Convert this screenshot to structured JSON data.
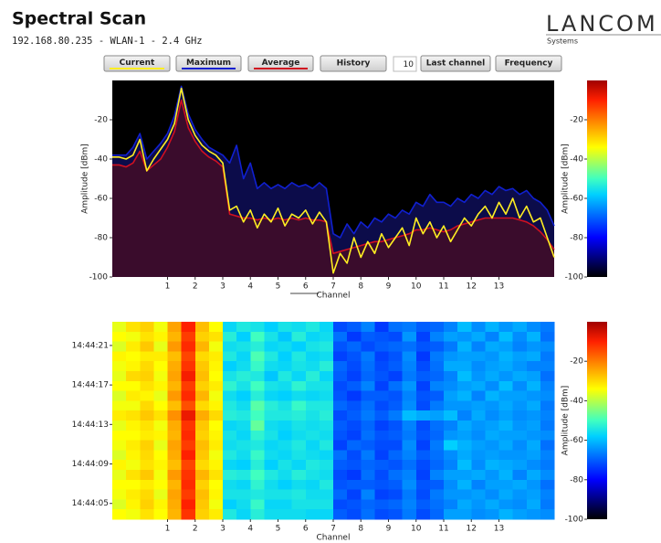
{
  "header": {
    "title": "Spectral Scan",
    "subtitle": "192.168.80.235 - WLAN-1 - 2.4 GHz",
    "logo": "LANCOM",
    "logo_sub": "Systems"
  },
  "controls": {
    "history": "History",
    "count": 10,
    "last_channel": "Last channel",
    "frequency": "Frequency"
  },
  "colormap": [
    {
      "value": -100,
      "color": "#000000"
    },
    {
      "value": -90,
      "color": "#000080"
    },
    {
      "value": -80,
      "color": "#0000ff"
    },
    {
      "value": -68,
      "color": "#0070ff"
    },
    {
      "value": -58,
      "color": "#00d0ff"
    },
    {
      "value": -50,
      "color": "#40ffc0"
    },
    {
      "value": -42,
      "color": "#a0ff60"
    },
    {
      "value": -34,
      "color": "#ffff00"
    },
    {
      "value": -22,
      "color": "#ff9000"
    },
    {
      "value": -10,
      "color": "#ff2000"
    },
    {
      "value": 0,
      "color": "#a00000"
    }
  ],
  "chart_data": [
    {
      "type": "line",
      "xlabel": "Channel",
      "ylabel": "Amplitude [dBm]",
      "x": [
        -1,
        -0.75,
        -0.5,
        -0.25,
        0,
        0.25,
        0.5,
        0.75,
        1,
        1.25,
        1.5,
        1.75,
        2,
        2.25,
        2.5,
        2.75,
        3,
        3.25,
        3.5,
        3.75,
        4,
        4.25,
        4.5,
        4.75,
        5,
        5.25,
        5.5,
        5.75,
        6,
        6.25,
        6.5,
        6.75,
        7,
        7.25,
        7.5,
        7.75,
        8,
        8.25,
        8.5,
        8.75,
        9,
        9.25,
        9.5,
        9.75,
        10,
        10.25,
        10.5,
        10.75,
        11,
        11.25,
        11.5,
        11.75,
        12,
        12.25,
        12.5,
        12.75,
        13,
        13.25,
        13.5,
        13.75,
        14,
        14.25,
        14.5,
        14.75,
        15
      ],
      "series": [
        {
          "name": "Current",
          "color": "#ffee22",
          "values": [
            -39,
            -39,
            -40,
            -38,
            -30,
            -46,
            -40,
            -35,
            -30,
            -22,
            -4,
            -20,
            -28,
            -33,
            -36,
            -38,
            -42,
            -66,
            -64,
            -72,
            -66,
            -75,
            -68,
            -72,
            -65,
            -74,
            -68,
            -70,
            -66,
            -73,
            -67,
            -72,
            -98,
            -88,
            -93,
            -80,
            -90,
            -82,
            -88,
            -78,
            -85,
            -80,
            -75,
            -84,
            -70,
            -78,
            -72,
            -80,
            -74,
            -82,
            -76,
            -70,
            -74,
            -68,
            -64,
            -70,
            -62,
            -68,
            -60,
            -70,
            -64,
            -72,
            -70,
            -80,
            -90
          ]
        },
        {
          "name": "Maximum",
          "color": "#1020d0",
          "fill": "#0c0c4a",
          "values": [
            -38,
            -38,
            -38,
            -34,
            -27,
            -40,
            -36,
            -32,
            -27,
            -18,
            -3,
            -17,
            -25,
            -30,
            -34,
            -36,
            -38,
            -42,
            -33,
            -50,
            -42,
            -55,
            -52,
            -55,
            -53,
            -55,
            -52,
            -54,
            -53,
            -55,
            -52,
            -55,
            -78,
            -80,
            -73,
            -78,
            -72,
            -75,
            -70,
            -72,
            -68,
            -70,
            -66,
            -68,
            -62,
            -64,
            -58,
            -62,
            -62,
            -64,
            -60,
            -62,
            -58,
            -60,
            -56,
            -58,
            -54,
            -56,
            -55,
            -58,
            -56,
            -60,
            -62,
            -66,
            -74
          ]
        },
        {
          "name": "Average",
          "color": "#d01020",
          "fill": "#3a0c2c",
          "values": [
            -43,
            -43,
            -44,
            -42,
            -36,
            -46,
            -43,
            -40,
            -34,
            -26,
            -10,
            -24,
            -31,
            -36,
            -39,
            -41,
            -44,
            -68,
            -69,
            -70,
            -70,
            -71,
            -70,
            -71,
            -70,
            -71,
            -70,
            -71,
            -70,
            -71,
            -71,
            -72,
            -88,
            -87,
            -86,
            -85,
            -84,
            -83,
            -82,
            -82,
            -81,
            -80,
            -79,
            -78,
            -76,
            -76,
            -75,
            -76,
            -77,
            -76,
            -74,
            -73,
            -72,
            -71,
            -70,
            -70,
            -70,
            -70,
            -70,
            -71,
            -72,
            -74,
            -77,
            -81,
            -86
          ]
        }
      ],
      "xlim": [
        -1,
        15
      ],
      "xticks": [
        1,
        2,
        3,
        4,
        5,
        6,
        7,
        8,
        9,
        10,
        11,
        12,
        13
      ],
      "ylim": [
        -100,
        0
      ],
      "yticks": [
        -100,
        -80,
        -60,
        -40,
        -20
      ],
      "colorbar": {
        "label": "Amplitude [dBm]",
        "lim": [
          -100,
          0
        ],
        "ticks": [
          -100,
          -80,
          -60,
          -40,
          -20
        ]
      }
    },
    {
      "type": "heatmap",
      "xlabel": "Channel",
      "xlim": [
        -1,
        15
      ],
      "xticks": [
        1,
        2,
        3,
        4,
        5,
        6,
        7,
        8,
        9,
        10,
        11,
        12,
        13
      ],
      "ylim": [
        3.4,
        23.4
      ],
      "yticks": [
        {
          "value": 21,
          "label": "14:44:21"
        },
        {
          "value": 17,
          "label": "14:44:17"
        },
        {
          "value": 13,
          "label": "14:44:13"
        },
        {
          "value": 9,
          "label": "14:44:09"
        },
        {
          "value": 5,
          "label": "14:44:05"
        }
      ],
      "values": [
        [
          -36,
          -31,
          -29,
          -35,
          -24,
          -10,
          -27,
          -34,
          -57,
          -54,
          -55,
          -58,
          -55,
          -56,
          -54,
          -57,
          -72,
          -70,
          -66,
          -74,
          -68,
          -67,
          -70,
          -69,
          -66,
          -60,
          -65,
          -61,
          -64,
          -62,
          -65,
          -67
        ],
        [
          -34,
          -35,
          -31,
          -33,
          -26,
          -13,
          -29,
          -31,
          -53,
          -58,
          -50,
          -55,
          -59,
          -53,
          -57,
          -56,
          -68,
          -74,
          -70,
          -71,
          -72,
          -64,
          -73,
          -66,
          -63,
          -64,
          -62,
          -66,
          -60,
          -65,
          -61,
          -68
        ],
        [
          -37,
          -32,
          -28,
          -36,
          -23,
          -11,
          -26,
          -35,
          -56,
          -55,
          -53,
          -57,
          -56,
          -58,
          -55,
          -54,
          -71,
          -69,
          -72,
          -70,
          -69,
          -68,
          -71,
          -70,
          -67,
          -61,
          -66,
          -62,
          -63,
          -66,
          -64,
          -65
        ],
        [
          -33,
          -34,
          -32,
          -32,
          -27,
          -14,
          -30,
          -32,
          -54,
          -57,
          -49,
          -54,
          -58,
          -54,
          -57,
          -56,
          -73,
          -71,
          -67,
          -73,
          -71,
          -65,
          -74,
          -67,
          -64,
          -63,
          -63,
          -64,
          -61,
          -63,
          -62,
          -67
        ],
        [
          -35,
          -33,
          -30,
          -34,
          -25,
          -12,
          -28,
          -33,
          -58,
          -56,
          -51,
          -56,
          -57,
          -55,
          -56,
          -53,
          -69,
          -72,
          -68,
          -72,
          -70,
          -66,
          -72,
          -68,
          -62,
          -62,
          -65,
          -63,
          -62,
          -64,
          -66,
          -66
        ],
        [
          -36,
          -30,
          -29,
          -35,
          -24,
          -9,
          -27,
          -34,
          -55,
          -53,
          -54,
          -59,
          -54,
          -57,
          -53,
          -57,
          -70,
          -73,
          -69,
          -71,
          -73,
          -67,
          -70,
          -69,
          -66,
          -60,
          -64,
          -62,
          -64,
          -62,
          -63,
          -68
        ],
        [
          -34,
          -34,
          -31,
          -33,
          -26,
          -13,
          -29,
          -32,
          -52,
          -55,
          -50,
          -55,
          -56,
          -52,
          -55,
          -55,
          -72,
          -70,
          -66,
          -73,
          -68,
          -64,
          -73,
          -66,
          -65,
          -63,
          -62,
          -65,
          -60,
          -65,
          -61,
          -66
        ],
        [
          -37,
          -32,
          -33,
          -36,
          -23,
          -11,
          -26,
          -35,
          -56,
          -58,
          -53,
          -57,
          -58,
          -56,
          -57,
          -56,
          -71,
          -74,
          -70,
          -70,
          -71,
          -66,
          -71,
          -70,
          -63,
          -61,
          -66,
          -61,
          -63,
          -63,
          -64,
          -65
        ],
        [
          -35,
          -35,
          -30,
          -34,
          -27,
          -15,
          -30,
          -33,
          -54,
          -56,
          -48,
          -53,
          -55,
          -51,
          -54,
          -54,
          -69,
          -71,
          -68,
          -72,
          -70,
          -65,
          -72,
          -67,
          -64,
          -64,
          -63,
          -64,
          -62,
          -64,
          -62,
          -67
        ],
        [
          -32,
          -31,
          -28,
          -31,
          -22,
          -8,
          -25,
          -30,
          -53,
          -54,
          -50,
          -54,
          -54,
          -53,
          -55,
          -53,
          -72,
          -70,
          -67,
          -70,
          -67,
          -60,
          -62,
          -63,
          -60,
          -66,
          -62,
          -65,
          -63,
          -65,
          -64,
          -66
        ],
        [
          -36,
          -33,
          -31,
          -35,
          -25,
          -12,
          -28,
          -34,
          -57,
          -56,
          -47,
          -56,
          -57,
          -55,
          -56,
          -55,
          -70,
          -72,
          -69,
          -73,
          -71,
          -66,
          -72,
          -68,
          -66,
          -62,
          -64,
          -63,
          -61,
          -64,
          -63,
          -67
        ],
        [
          -34,
          -34,
          -32,
          -33,
          -26,
          -11,
          -29,
          -33,
          -55,
          -57,
          -52,
          -55,
          -58,
          -56,
          -55,
          -56,
          -71,
          -73,
          -68,
          -71,
          -70,
          -67,
          -71,
          -69,
          -64,
          -63,
          -65,
          -62,
          -63,
          -63,
          -64,
          -65
        ],
        [
          -35,
          -32,
          -29,
          -36,
          -24,
          -13,
          -27,
          -32,
          -56,
          -55,
          -54,
          -57,
          -56,
          -54,
          -57,
          -54,
          -73,
          -69,
          -70,
          -72,
          -72,
          -65,
          -73,
          -67,
          -58,
          -61,
          -63,
          -64,
          -62,
          -65,
          -62,
          -68
        ],
        [
          -37,
          -33,
          -30,
          -34,
          -25,
          -10,
          -28,
          -35,
          -54,
          -56,
          -51,
          -56,
          -57,
          -55,
          -56,
          -57,
          -68,
          -72,
          -67,
          -73,
          -69,
          -66,
          -70,
          -68,
          -65,
          -62,
          -64,
          -63,
          -64,
          -64,
          -63,
          -66
        ],
        [
          -33,
          -35,
          -31,
          -33,
          -27,
          -14,
          -30,
          -33,
          -57,
          -58,
          -53,
          -58,
          -55,
          -57,
          -54,
          -55,
          -70,
          -71,
          -69,
          -70,
          -71,
          -68,
          -72,
          -69,
          -66,
          -60,
          -65,
          -61,
          -62,
          -63,
          -65,
          -67
        ],
        [
          -36,
          -31,
          -28,
          -35,
          -23,
          -12,
          -26,
          -31,
          -53,
          -54,
          -50,
          -54,
          -56,
          -53,
          -55,
          -56,
          -72,
          -74,
          -68,
          -72,
          -68,
          -66,
          -73,
          -66,
          -63,
          -63,
          -62,
          -64,
          -61,
          -66,
          -62,
          -65
        ],
        [
          -34,
          -34,
          -32,
          -34,
          -26,
          -11,
          -29,
          -34,
          -56,
          -57,
          -52,
          -56,
          -58,
          -56,
          -57,
          -54,
          -71,
          -70,
          -70,
          -71,
          -70,
          -65,
          -71,
          -70,
          -65,
          -61,
          -66,
          -63,
          -63,
          -62,
          -64,
          -68
        ],
        [
          -35,
          -32,
          -30,
          -36,
          -24,
          -13,
          -27,
          -33,
          -55,
          -55,
          -54,
          -55,
          -55,
          -54,
          -56,
          -56,
          -69,
          -73,
          -66,
          -73,
          -72,
          -67,
          -72,
          -67,
          -64,
          -64,
          -63,
          -65,
          -62,
          -64,
          -63,
          -66
        ],
        [
          -37,
          -33,
          -29,
          -33,
          -25,
          -10,
          -28,
          -35,
          -58,
          -56,
          -51,
          -57,
          -57,
          -55,
          -55,
          -55,
          -72,
          -71,
          -69,
          -70,
          -69,
          -66,
          -70,
          -68,
          -66,
          -62,
          -64,
          -62,
          -64,
          -65,
          -62,
          -67
        ],
        [
          -34,
          -35,
          -31,
          -34,
          -26,
          -12,
          -29,
          -32,
          -54,
          -57,
          -53,
          -56,
          -56,
          -56,
          -57,
          -57,
          -70,
          -72,
          -68,
          -72,
          -71,
          -67,
          -72,
          -69,
          -63,
          -63,
          -65,
          -64,
          -61,
          -63,
          -64,
          -65
        ]
      ],
      "colorbar": {
        "label": "Amplitude [dBm]",
        "lim": [
          -100,
          0
        ],
        "ticks": [
          -100,
          -80,
          -60,
          -40,
          -20
        ]
      }
    }
  ]
}
